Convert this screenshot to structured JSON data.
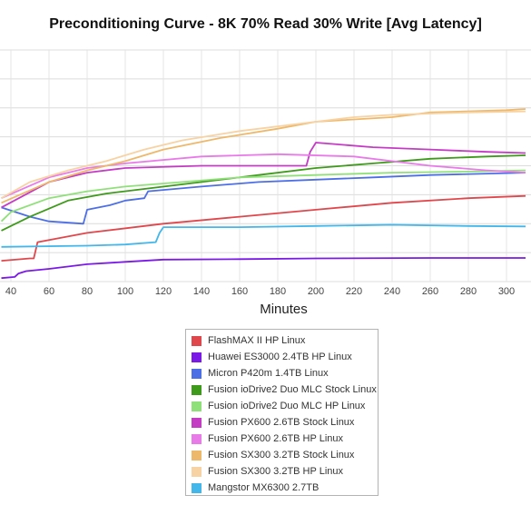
{
  "chart_data": {
    "type": "line",
    "title": "Preconditioning Curve - 8K 70% Read 30% Write [Avg Latency]",
    "xlabel": "Minutes",
    "ylabel": "",
    "x_ticks": [
      40,
      60,
      80,
      100,
      120,
      140,
      160,
      180,
      200,
      220,
      240,
      260,
      280,
      300
    ],
    "xlim": [
      35,
      310
    ],
    "ylim": [
      0,
      10
    ],
    "grid": true,
    "legend_position": "bottom",
    "series": [
      {
        "name": "FlashMAX II HP Linux",
        "color": "#e0474c",
        "points": [
          [
            35,
            0.9
          ],
          [
            50,
            1.0
          ],
          [
            52,
            1.0
          ],
          [
            54,
            1.7
          ],
          [
            80,
            2.1
          ],
          [
            120,
            2.5
          ],
          [
            160,
            2.8
          ],
          [
            200,
            3.1
          ],
          [
            240,
            3.4
          ],
          [
            280,
            3.6
          ],
          [
            310,
            3.7
          ]
        ]
      },
      {
        "name": "Huawei ES3000 2.4TB HP Linux",
        "color": "#7b1ae6",
        "points": [
          [
            35,
            0.15
          ],
          [
            42,
            0.2
          ],
          [
            44,
            0.35
          ],
          [
            48,
            0.45
          ],
          [
            60,
            0.55
          ],
          [
            80,
            0.75
          ],
          [
            100,
            0.85
          ],
          [
            120,
            0.95
          ],
          [
            160,
            0.97
          ],
          [
            200,
            1.0
          ],
          [
            260,
            1.02
          ],
          [
            310,
            1.02
          ]
        ]
      },
      {
        "name": "Micron P420m 1.4TB Linux",
        "color": "#4d6fe6",
        "points": [
          [
            35,
            3.2
          ],
          [
            50,
            2.8
          ],
          [
            60,
            2.6
          ],
          [
            78,
            2.5
          ],
          [
            80,
            3.1
          ],
          [
            92,
            3.3
          ],
          [
            100,
            3.5
          ],
          [
            110,
            3.6
          ],
          [
            112,
            3.9
          ],
          [
            140,
            4.1
          ],
          [
            170,
            4.3
          ],
          [
            200,
            4.4
          ],
          [
            230,
            4.5
          ],
          [
            260,
            4.6
          ],
          [
            310,
            4.7
          ]
        ]
      },
      {
        "name": "Fusion ioDrive2 Duo MLC Stock Linux",
        "color": "#3e9a1a",
        "points": [
          [
            35,
            2.2
          ],
          [
            50,
            2.8
          ],
          [
            70,
            3.5
          ],
          [
            90,
            3.8
          ],
          [
            110,
            4.0
          ],
          [
            140,
            4.3
          ],
          [
            170,
            4.6
          ],
          [
            200,
            4.9
          ],
          [
            230,
            5.1
          ],
          [
            260,
            5.3
          ],
          [
            290,
            5.4
          ],
          [
            310,
            5.45
          ]
        ]
      },
      {
        "name": "Fusion ioDrive2 Duo MLC HP Linux",
        "color": "#90e07a",
        "points": [
          [
            35,
            2.6
          ],
          [
            40,
            3.0
          ],
          [
            60,
            3.6
          ],
          [
            80,
            3.9
          ],
          [
            100,
            4.1
          ],
          [
            130,
            4.3
          ],
          [
            160,
            4.5
          ],
          [
            200,
            4.6
          ],
          [
            240,
            4.7
          ],
          [
            280,
            4.75
          ],
          [
            310,
            4.8
          ]
        ]
      },
      {
        "name": "Fusion PX600 2.6TB Stock Linux",
        "color": "#c43cc4",
        "points": [
          [
            35,
            3.2
          ],
          [
            60,
            4.3
          ],
          [
            80,
            4.7
          ],
          [
            100,
            4.9
          ],
          [
            140,
            5.0
          ],
          [
            180,
            5.0
          ],
          [
            195,
            5.0
          ],
          [
            197,
            5.6
          ],
          [
            200,
            6.0
          ],
          [
            230,
            5.8
          ],
          [
            260,
            5.7
          ],
          [
            290,
            5.6
          ],
          [
            310,
            5.55
          ]
        ]
      },
      {
        "name": "Fusion PX600 2.6TB HP Linux",
        "color": "#e87be8",
        "points": [
          [
            35,
            3.6
          ],
          [
            60,
            4.5
          ],
          [
            80,
            4.9
          ],
          [
            100,
            5.1
          ],
          [
            140,
            5.4
          ],
          [
            180,
            5.5
          ],
          [
            220,
            5.4
          ],
          [
            260,
            5.0
          ],
          [
            290,
            4.8
          ],
          [
            310,
            4.7
          ]
        ]
      },
      {
        "name": "Fusion SX300 3.2TB Stock Linux",
        "color": "#eeb86a",
        "points": [
          [
            35,
            3.4
          ],
          [
            60,
            4.3
          ],
          [
            80,
            4.8
          ],
          [
            100,
            5.2
          ],
          [
            120,
            5.7
          ],
          [
            150,
            6.2
          ],
          [
            180,
            6.6
          ],
          [
            200,
            6.9
          ],
          [
            220,
            7.0
          ],
          [
            240,
            7.1
          ],
          [
            260,
            7.3
          ],
          [
            300,
            7.4
          ],
          [
            310,
            7.45
          ]
        ]
      },
      {
        "name": "Fusion SX300 3.2TB HP Linux",
        "color": "#f7d2a3",
        "points": [
          [
            35,
            3.6
          ],
          [
            50,
            4.3
          ],
          [
            70,
            4.8
          ],
          [
            90,
            5.2
          ],
          [
            110,
            5.7
          ],
          [
            130,
            6.1
          ],
          [
            160,
            6.5
          ],
          [
            200,
            6.9
          ],
          [
            220,
            7.1
          ],
          [
            240,
            7.2
          ],
          [
            280,
            7.3
          ],
          [
            310,
            7.35
          ]
        ]
      },
      {
        "name": "Mangstor MX6300 2.7TB",
        "color": "#43b6ea",
        "points": [
          [
            35,
            1.5
          ],
          [
            80,
            1.55
          ],
          [
            100,
            1.6
          ],
          [
            116,
            1.7
          ],
          [
            118,
            2.1
          ],
          [
            120,
            2.35
          ],
          [
            160,
            2.35
          ],
          [
            200,
            2.4
          ],
          [
            240,
            2.45
          ],
          [
            280,
            2.4
          ],
          [
            310,
            2.38
          ]
        ]
      }
    ]
  }
}
